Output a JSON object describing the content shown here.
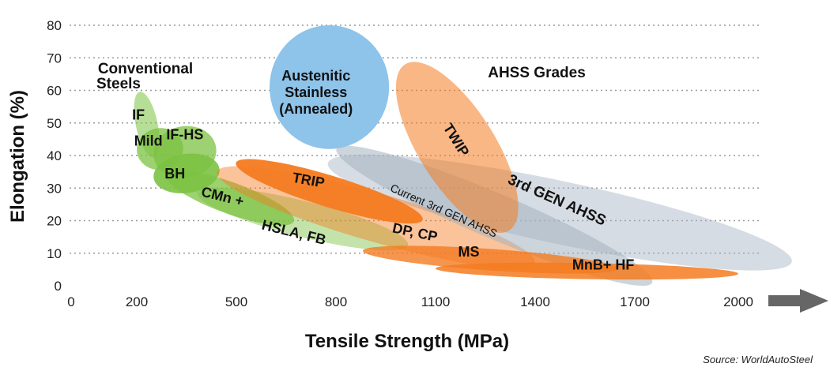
{
  "chart_data": {
    "type": "scatter",
    "xlabel": "Tensile Strength (MPa)",
    "ylabel": "Elongation (%)",
    "xlim": [
      0,
      2000
    ],
    "ylim": [
      0,
      80
    ],
    "x_ticks": [
      "0",
      "200",
      "500",
      "800",
      "1100",
      "1400",
      "1700",
      "2000"
    ],
    "y_ticks": [
      "0",
      "10",
      "20",
      "30",
      "40",
      "50",
      "60",
      "70",
      "80"
    ],
    "grid": "horizontal dotted",
    "source": "Source:  WorldAutoSteel",
    "group_labels": {
      "conventional": [
        "Conventional",
        "Steels"
      ],
      "ahss": "AHSS Grades",
      "austenitic": [
        "Austenitic",
        "Stainless",
        "(Annealed)"
      ]
    },
    "colors": {
      "conventional": "#7cc242",
      "ahss": "#f47b20",
      "gray": "#a4b2c0",
      "austenitic": "#8ec3ea",
      "arrow": "#666666"
    },
    "series": [
      {
        "name": "IF",
        "label_pos": [
          205,
          51
        ],
        "tensile_range": [
          170,
          290
        ],
        "elongation_range": [
          39,
          60
        ]
      },
      {
        "name": "Mild",
        "label_pos": [
          235,
          43
        ],
        "tensile_range": [
          200,
          340
        ],
        "elongation_range": [
          34,
          50
        ]
      },
      {
        "name": "IF-HS",
        "label_pos": [
          345,
          45
        ],
        "tensile_range": [
          250,
          440
        ],
        "elongation_range": [
          31,
          51
        ]
      },
      {
        "name": "BH",
        "label_pos": [
          315,
          33
        ],
        "tensile_range": [
          250,
          450
        ],
        "elongation_range": [
          27,
          42
        ]
      },
      {
        "name": "CMn +",
        "label_pos": [
          455,
          26
        ],
        "tensile_range": [
          300,
          660
        ],
        "elongation_range": [
          16,
          38
        ]
      },
      {
        "name": "HSLA, FB",
        "label_pos": [
          670,
          15
        ],
        "tensile_range": [
          390,
          1010
        ],
        "elongation_range": [
          8,
          33
        ]
      },
      {
        "name": "TRIP",
        "label_pos": [
          715,
          31
        ],
        "tensile_range": [
          500,
          1060
        ],
        "elongation_range": [
          18,
          40
        ]
      },
      {
        "name": "DP, CP",
        "label_pos": [
          1035,
          15
        ],
        "tensile_range": [
          440,
          1400
        ],
        "elongation_range": [
          4,
          38
        ]
      },
      {
        "name": "MS",
        "label_pos": [
          1200,
          9
        ],
        "tensile_range": [
          880,
          1650
        ],
        "elongation_range": [
          2,
          14
        ]
      },
      {
        "name": "MnB+ HF",
        "label_pos": [
          1605,
          5
        ],
        "tensile_range": [
          1100,
          2000
        ],
        "elongation_range": [
          0,
          9
        ]
      },
      {
        "name": "TWIP",
        "label_pos": [
          1150,
          44
        ],
        "tensile_range": [
          960,
          1370
        ],
        "elongation_range": [
          20,
          65
        ]
      },
      {
        "name": "Austenitic Stainless (Annealed)",
        "label_pos": [
          740,
          60
        ],
        "tensile_range": [
          600,
          960
        ],
        "elongation_range": [
          42,
          80
        ]
      },
      {
        "name": "Current 3rd GEN AHSS",
        "label_pos": [
          1120,
          22
        ],
        "tensile_range": [
          750,
          1800
        ],
        "elongation_range": [
          5,
          38
        ]
      },
      {
        "name": "3rd GEN AHSS",
        "label_pos": [
          1460,
          25
        ],
        "tensile_range": [
          760,
          2170
        ],
        "elongation_range": [
          5,
          40
        ]
      }
    ]
  }
}
